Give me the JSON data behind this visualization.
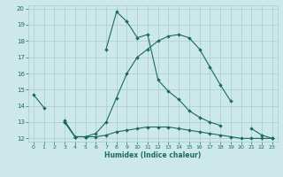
{
  "xlabel": "Humidex (Indice chaleur)",
  "xlim": [
    -0.5,
    23.5
  ],
  "ylim": [
    11.8,
    20.2
  ],
  "xticks": [
    0,
    1,
    2,
    3,
    4,
    5,
    6,
    7,
    8,
    9,
    10,
    11,
    12,
    13,
    14,
    15,
    16,
    17,
    18,
    19,
    20,
    21,
    22,
    23
  ],
  "yticks": [
    12,
    13,
    14,
    15,
    16,
    17,
    18,
    19,
    20
  ],
  "bg_color": "#cce8e8",
  "grid_color": "#aacccc",
  "line_color": "#1a6b5e",
  "line1_y": [
    14.7,
    13.9,
    null,
    13.1,
    12.1,
    12.1,
    null,
    17.5,
    19.8,
    19.2,
    18.2,
    18.4,
    15.6,
    14.9,
    14.4,
    13.7,
    13.3,
    13.0,
    12.8,
    null,
    null,
    null,
    null,
    12.0
  ],
  "line2_y": [
    null,
    null,
    null,
    13.0,
    12.1,
    12.1,
    12.1,
    12.2,
    12.4,
    12.5,
    12.6,
    12.7,
    12.7,
    12.7,
    12.6,
    12.5,
    12.4,
    12.3,
    12.2,
    12.1,
    12.0,
    12.0,
    12.0,
    12.0
  ],
  "line3_y": [
    null,
    null,
    null,
    13.0,
    12.1,
    12.1,
    12.3,
    13.0,
    14.5,
    16.0,
    17.0,
    17.5,
    18.0,
    18.3,
    18.4,
    18.2,
    17.5,
    16.4,
    15.3,
    14.3,
    null,
    12.6,
    12.2,
    12.0
  ]
}
